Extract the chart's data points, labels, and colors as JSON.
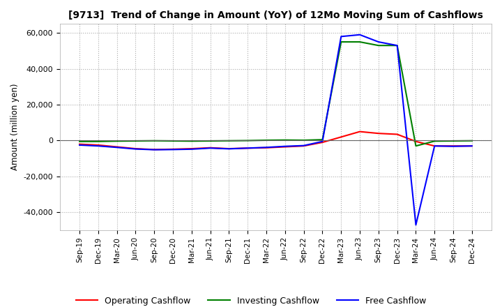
{
  "title": "[9713]  Trend of Change in Amount (YoY) of 12Mo Moving Sum of Cashflows",
  "ylabel": "Amount (million yen)",
  "ylim": [
    -50000,
    65000
  ],
  "yticks": [
    -40000,
    -20000,
    0,
    20000,
    40000,
    60000
  ],
  "x_labels": [
    "Sep-19",
    "Dec-19",
    "Mar-20",
    "Jun-20",
    "Sep-20",
    "Dec-20",
    "Mar-21",
    "Jun-21",
    "Sep-21",
    "Dec-21",
    "Mar-22",
    "Jun-22",
    "Sep-22",
    "Dec-22",
    "Mar-23",
    "Jun-23",
    "Sep-23",
    "Dec-23",
    "Mar-24",
    "Jun-24",
    "Sep-24",
    "Dec-24"
  ],
  "operating": [
    -2000,
    -2500,
    -3500,
    -4500,
    -5000,
    -4800,
    -4500,
    -4000,
    -4500,
    -4200,
    -4000,
    -3500,
    -3000,
    -1000,
    2000,
    5000,
    4000,
    3500,
    -500,
    -3000,
    -3000,
    -3000
  ],
  "investing": [
    -500,
    -500,
    -300,
    -200,
    -100,
    -200,
    -300,
    -200,
    -100,
    0,
    200,
    300,
    200,
    500,
    55000,
    55000,
    53000,
    53000,
    -3000,
    -300,
    -200,
    -100
  ],
  "free": [
    -2500,
    -3000,
    -3800,
    -4700,
    -5100,
    -5000,
    -4800,
    -4200,
    -4600,
    -4200,
    -3800,
    -3200,
    -2800,
    -500,
    58000,
    59000,
    55000,
    53000,
    -47000,
    -3000,
    -3200,
    -3000
  ],
  "operating_color": "#ff0000",
  "investing_color": "#008000",
  "free_color": "#0000ff",
  "background_color": "#ffffff",
  "grid_color": "#aaaaaa",
  "title_fontsize": 10,
  "legend_labels": [
    "Operating Cashflow",
    "Investing Cashflow",
    "Free Cashflow"
  ]
}
